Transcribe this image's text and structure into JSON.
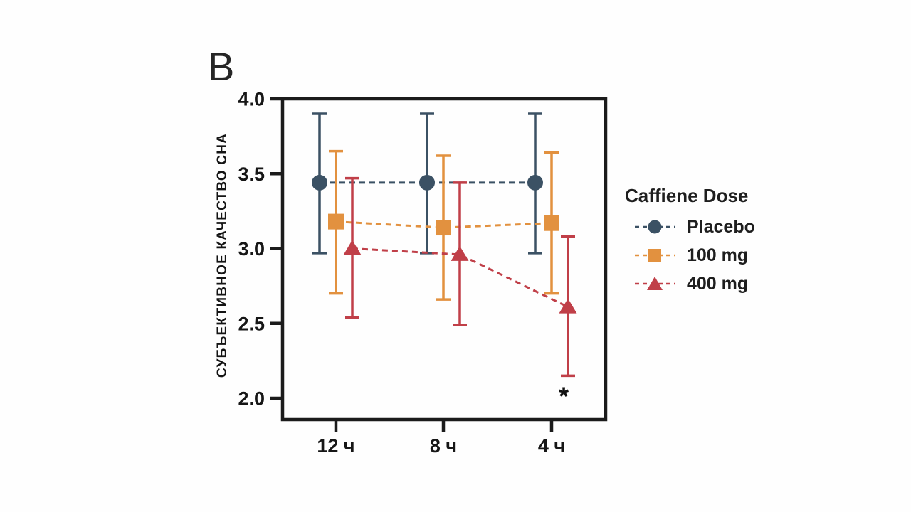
{
  "panel_label": "B",
  "colors": {
    "axis": "#1b1b1b",
    "text": "#161616",
    "background": "#ffffff"
  },
  "legend": {
    "title": "Caffiene Dose",
    "entries": [
      {
        "label": "Placebo",
        "marker": "circle",
        "color": "#3b5164"
      },
      {
        "label": "100 mg",
        "marker": "square",
        "color": "#e2913f"
      },
      {
        "label": "400 mg",
        "marker": "triangle",
        "color": "#c03f48"
      }
    ]
  },
  "chart_data": {
    "type": "line",
    "title": "",
    "xlabel": "",
    "ylabel": "СУБЪЕКТИВНОЕ КАЧЕСТВО СНА",
    "categories": [
      "12 ч",
      "8 ч",
      "4 ч"
    ],
    "ylim": [
      2.0,
      4.0
    ],
    "yticks": [
      4.0,
      3.5,
      3.0,
      2.5,
      2.0
    ],
    "grid": false,
    "legend_position": "right",
    "line_style": "dashed",
    "series": [
      {
        "name": "Placebo",
        "marker": "circle",
        "color": "#3b5164",
        "values": [
          3.44,
          3.44,
          3.44
        ],
        "err_low": [
          2.97,
          2.97,
          2.97
        ],
        "err_high": [
          3.9,
          3.9,
          3.9
        ]
      },
      {
        "name": "100 mg",
        "marker": "square",
        "color": "#e2913f",
        "values": [
          3.18,
          3.14,
          3.17
        ],
        "err_low": [
          2.7,
          2.66,
          2.7
        ],
        "err_high": [
          3.65,
          3.62,
          3.64
        ]
      },
      {
        "name": "400 mg",
        "marker": "triangle",
        "color": "#c03f48",
        "values": [
          3.0,
          2.96,
          2.61
        ],
        "err_low": [
          2.54,
          2.49,
          2.15
        ],
        "err_high": [
          3.47,
          3.44,
          3.08
        ]
      }
    ],
    "annotations": [
      {
        "text": "*",
        "category_index": 2,
        "series": "400 mg",
        "y": 2.06
      }
    ]
  }
}
